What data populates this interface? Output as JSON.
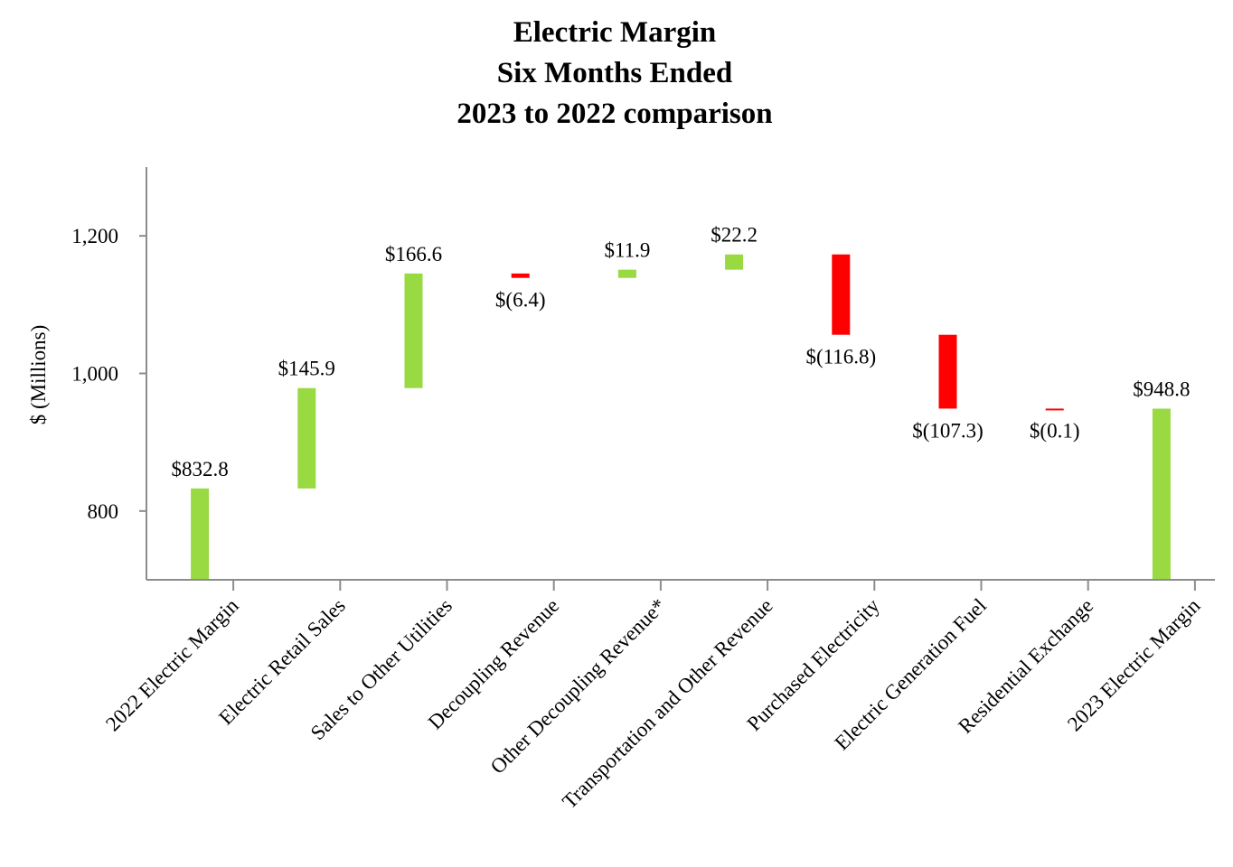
{
  "chart_data": {
    "type": "waterfall",
    "title": [
      "Electric Margin",
      "Six Months Ended",
      "2023 to 2022 comparison"
    ],
    "ylabel": "$ (Millions)",
    "xlabel": "",
    "ylim": [
      700,
      1300
    ],
    "yticks": [
      800,
      1000,
      1200
    ],
    "ytick_labels": [
      "800",
      "1,000",
      "1,200"
    ],
    "grid": false,
    "colors": {
      "increase": "#99d941",
      "decrease": "#ff0000",
      "total": "#99d941"
    },
    "categories": [
      "2022 Electric Margin",
      "Electric Retail Sales",
      "Sales to Other Utilities",
      "Decoupling Revenue",
      "Other Decoupling Revenue*",
      "Transportation and Other Revenue",
      "Purchased Electricity",
      "Electric Generation Fuel",
      "Residential Exchange",
      "2023 Electric Margin"
    ],
    "values": [
      832.8,
      145.9,
      166.6,
      -6.4,
      11.9,
      22.2,
      -116.8,
      -107.3,
      -0.1,
      948.8
    ],
    "kinds": [
      "total",
      "delta",
      "delta",
      "delta",
      "delta",
      "delta",
      "delta",
      "delta",
      "delta",
      "total"
    ],
    "data_labels": [
      "$832.8",
      "$145.9",
      "$166.6",
      "$(6.4)",
      "$11.9",
      "$22.2",
      "$(116.8)",
      "$(107.3)",
      "$(0.1)",
      "$948.8"
    ]
  }
}
